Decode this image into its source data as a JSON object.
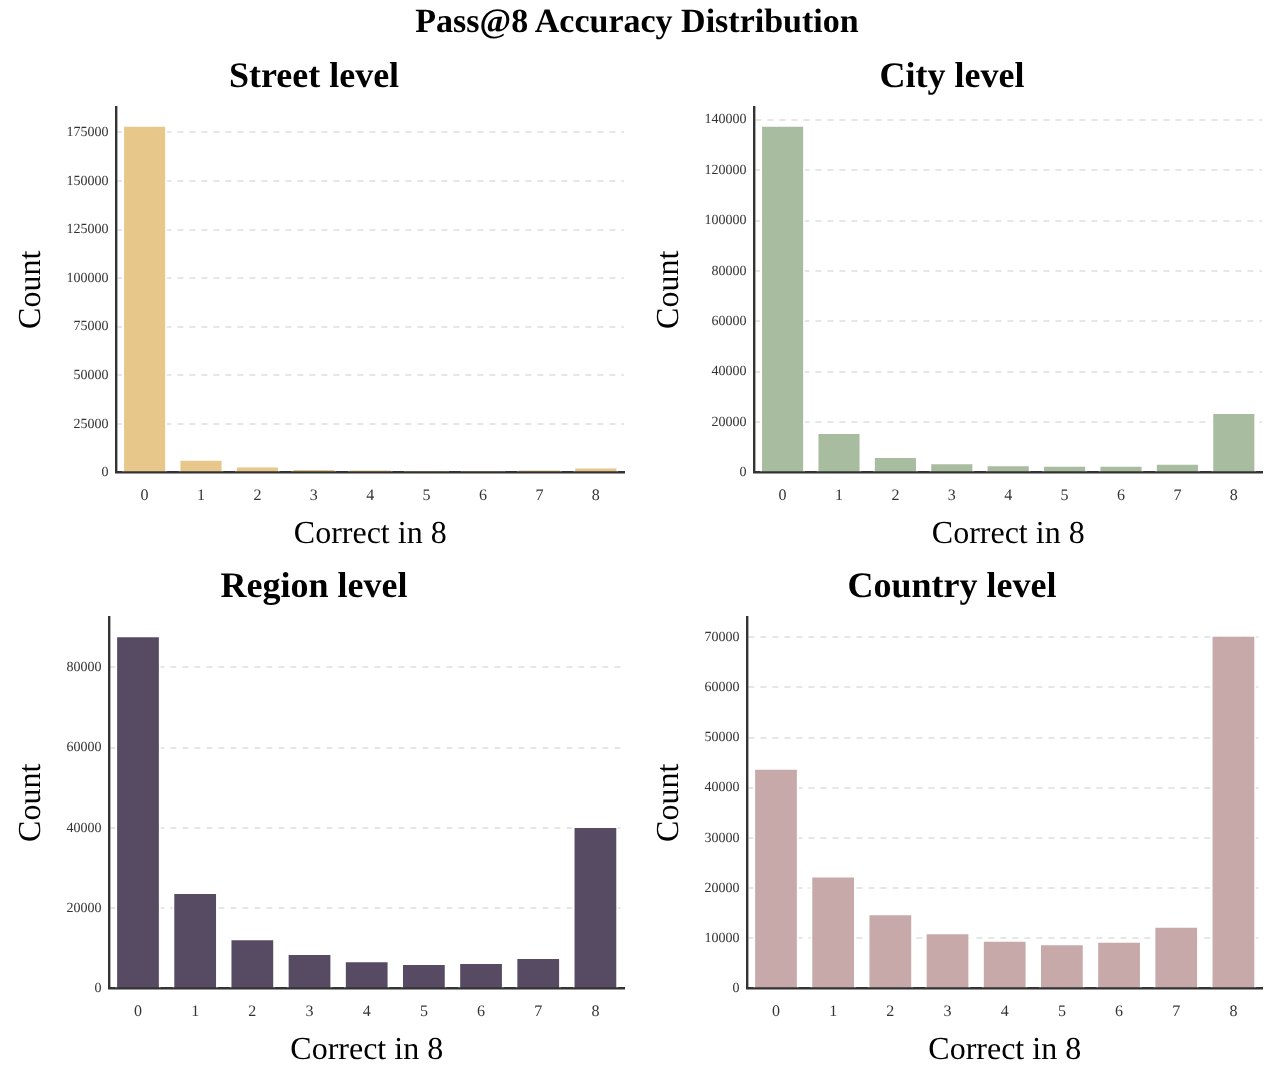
{
  "chart_data": [
    {
      "type": "bar",
      "title": "Street level",
      "xlabel": "Correct in 8",
      "ylabel": "Count",
      "annotations": [
        "Pass@8 Accuracy Distribution"
      ],
      "categories": [
        "0",
        "1",
        "2",
        "3",
        "4",
        "5",
        "6",
        "7",
        "8"
      ],
      "values": [
        179000,
        7000,
        3500,
        2000,
        1500,
        1000,
        1000,
        1500,
        3000
      ],
      "color": "#e8c88a",
      "ylim": [
        0,
        188000
      ],
      "yticks": [
        0,
        25000,
        50000,
        75000,
        100000,
        125000,
        150000,
        175000
      ],
      "grid": "y",
      "legend": false
    },
    {
      "type": "bar",
      "title": "City level",
      "xlabel": "Correct in 8",
      "ylabel": "Count",
      "categories": [
        "0",
        "1",
        "2",
        "3",
        "4",
        "5",
        "6",
        "7",
        "8"
      ],
      "values": [
        138000,
        16000,
        6500,
        4000,
        3200,
        3000,
        3000,
        3800,
        24000
      ],
      "color": "#a8bda0",
      "ylim": [
        0,
        145000
      ],
      "yticks": [
        0,
        20000,
        40000,
        60000,
        80000,
        100000,
        120000,
        140000
      ],
      "grid": "y",
      "legend": false
    },
    {
      "type": "bar",
      "title": "Region level",
      "xlabel": "Correct in 8",
      "ylabel": "Count",
      "categories": [
        "0",
        "1",
        "2",
        "3",
        "4",
        "5",
        "6",
        "7",
        "8"
      ],
      "values": [
        88000,
        24000,
        12500,
        8800,
        7000,
        6300,
        6600,
        7800,
        40500
      ],
      "color": "#574a63",
      "ylim": [
        0,
        92500
      ],
      "yticks": [
        0,
        20000,
        40000,
        60000,
        80000
      ],
      "grid": "y",
      "legend": false
    },
    {
      "type": "bar",
      "title": "Country level",
      "xlabel": "Correct in 8",
      "ylabel": "Count",
      "categories": [
        "0",
        "1",
        "2",
        "3",
        "4",
        "5",
        "6",
        "7",
        "8"
      ],
      "values": [
        44000,
        22500,
        15000,
        11200,
        9700,
        9000,
        9500,
        12500,
        70500
      ],
      "color": "#c7a9a9",
      "ylim": [
        0,
        74000
      ],
      "yticks": [
        0,
        10000,
        20000,
        30000,
        40000,
        50000,
        60000,
        70000
      ],
      "grid": "y",
      "legend": false
    }
  ]
}
